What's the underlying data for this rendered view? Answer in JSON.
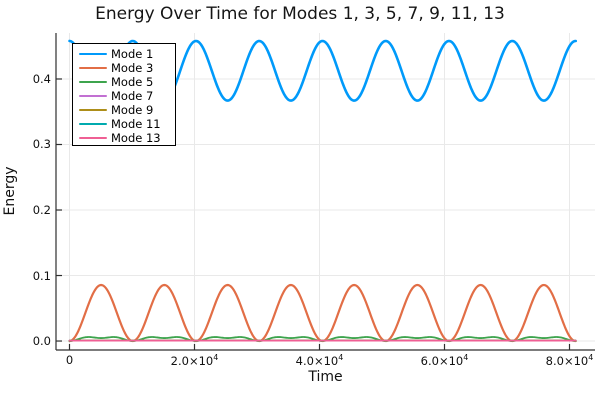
{
  "title": "Energy Over Time for Modes 1, 3, 5, 7, 9, 11, 13",
  "chart_data": {
    "type": "line",
    "title": "Energy Over Time for Modes 1, 3, 5, 7, 9, 11, 13",
    "xlabel": "Time",
    "ylabel": "Energy",
    "xlim": [
      -2160,
      84080
    ],
    "ylim": [
      -0.0137,
      0.4702
    ],
    "grid": true,
    "legend_position": "top-left",
    "background": "#ffffff",
    "grid_color": "#e9e9e9",
    "axis_color": "#2e2e2e",
    "xticks": [
      {
        "value": 0,
        "base": "0",
        "exp": ""
      },
      {
        "value": 20000,
        "base": "2.0×10",
        "exp": "4"
      },
      {
        "value": 40000,
        "base": "4.0×10",
        "exp": "4"
      },
      {
        "value": 60000,
        "base": "6.0×10",
        "exp": "4"
      },
      {
        "value": 80000,
        "base": "8.0×10",
        "exp": "4"
      }
    ],
    "yticks": [
      {
        "value": 0.0,
        "label": "0.0"
      },
      {
        "value": 0.1,
        "label": "0.1"
      },
      {
        "value": 0.2,
        "label": "0.2"
      },
      {
        "value": 0.3,
        "label": "0.3"
      },
      {
        "value": 0.4,
        "label": "0.4"
      }
    ],
    "t_start": 0,
    "t_end": 81000,
    "samples": 560,
    "period": 10120,
    "series": [
      {
        "name": "Mode 1",
        "color": "#009AFA",
        "model": "offset_cos",
        "mean": 0.4125,
        "amplitude": 0.0455,
        "width": 2.6,
        "description": "oscillates between ~0.367 and ~0.458, peaks at t = 0, P, 2P, ..."
      },
      {
        "name": "Mode 3",
        "color": "#E26E46",
        "model": "sin2",
        "amplitude": 0.0855,
        "width": 2.2,
        "description": "humps from 0 up to ~0.085, zeros at t = 0, P, 2P, ..."
      },
      {
        "name": "Mode 5",
        "color": "#3DA44D",
        "model": "sin2_double",
        "a1": 0.0045,
        "a2": 0.0035,
        "width": 1.8,
        "description": "small double humps peaking near ~0.006"
      },
      {
        "name": "Mode 7",
        "color": "#C270D2",
        "model": "flat",
        "value": 0.0012,
        "width": 1.5,
        "description": "nearly zero"
      },
      {
        "name": "Mode 9",
        "color": "#AD8E19",
        "model": "flat",
        "value": 0.0008,
        "width": 1.5,
        "description": "nearly zero"
      },
      {
        "name": "Mode 11",
        "color": "#00AAAE",
        "model": "flat",
        "value": 0.0005,
        "width": 1.5,
        "description": "nearly zero"
      },
      {
        "name": "Mode 13",
        "color": "#EF5F94",
        "model": "flat",
        "value": 0.0004,
        "width": 1.5,
        "description": "nearly zero"
      }
    ]
  }
}
